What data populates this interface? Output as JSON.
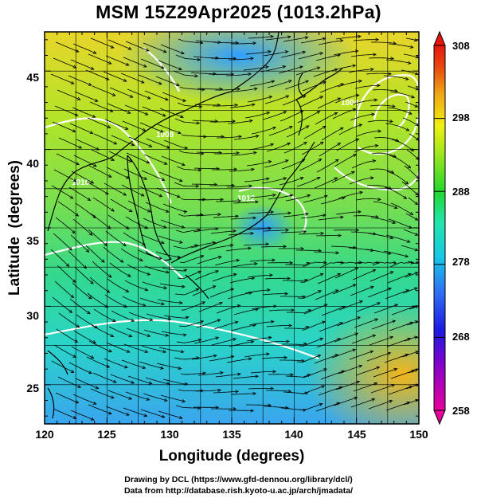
{
  "title": "MSM 15Z29Apr2025 (1013.2hPa)",
  "xlabel": "Longitude (degrees)",
  "ylabel": "Latitude  (degrees)",
  "x_ticks": [
    "120",
    "125",
    "130",
    "135",
    "140",
    "145",
    "150"
  ],
  "y_ticks": [
    "25",
    "30",
    "35",
    "40",
    "45"
  ],
  "colorbar": {
    "ticks": [
      "258",
      "268",
      "278",
      "288",
      "298",
      "308"
    ],
    "colors": [
      "#e7009a",
      "#8a00c8",
      "#1a1ae0",
      "#2f6df2",
      "#18c8e6",
      "#22e6a8",
      "#23d62e",
      "#9be61e",
      "#f0f014",
      "#f0a214",
      "#e84a10",
      "#e8150f"
    ]
  },
  "contour_labels": [
    "1008",
    "1004",
    "1012",
    "1016"
  ],
  "footer": {
    "line1": "Drawing by DCL (https://www.gfd-dennou.org/library/dcl/)",
    "line2": "Data from http://database.rish.kyoto-u.ac.jp/arch/jmadata/"
  },
  "map_extent": {
    "lon": [
      120,
      150
    ],
    "lat": [
      22.5,
      47.5
    ]
  },
  "colorbar_range": [
    258,
    308
  ]
}
